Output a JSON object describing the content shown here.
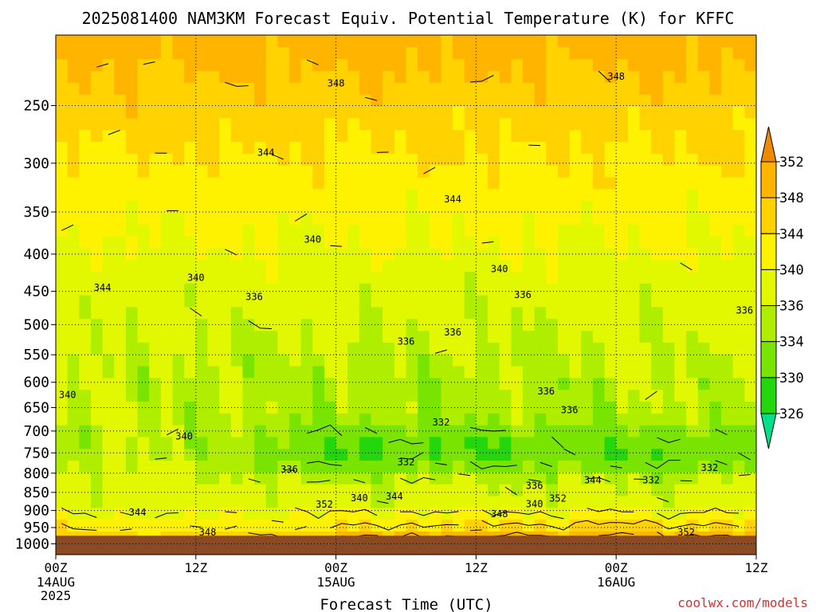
{
  "chart_data": {
    "type": "heatmap",
    "title": "2025081400 NAM3KM Forecast Equiv. Potential Temperature (K) for KFFC",
    "xlabel": "Forecast Time (UTC)",
    "ylabel": "",
    "credit": "coolwx.com/models",
    "x_range_hours": [
      0,
      60
    ],
    "x_ticks": [
      {
        "hour": 0,
        "label": "00Z",
        "date": "14AUG",
        "year": "2025"
      },
      {
        "hour": 12,
        "label": "12Z",
        "date": "",
        "year": ""
      },
      {
        "hour": 24,
        "label": "00Z",
        "date": "15AUG",
        "year": ""
      },
      {
        "hour": 36,
        "label": "12Z",
        "date": "",
        "year": ""
      },
      {
        "hour": 48,
        "label": "00Z",
        "date": "16AUG",
        "year": ""
      },
      {
        "hour": 60,
        "label": "12Z",
        "date": "",
        "year": ""
      }
    ],
    "y_axis": "pressure (hPa), decreasing upward, log scale",
    "y_range_hpa": [
      1035,
      200
    ],
    "y_ticks": [
      250,
      300,
      350,
      400,
      450,
      500,
      550,
      600,
      650,
      700,
      750,
      800,
      850,
      900,
      950,
      1000
    ],
    "surface_hpa": 975,
    "surface_color": "#8b4a22",
    "grid": true,
    "colorbar": {
      "levels": [
        326,
        330,
        334,
        336,
        340,
        344,
        348,
        352
      ],
      "labels": [
        "352",
        "348",
        "344",
        "340",
        "336",
        "334",
        "330",
        "326"
      ],
      "colors": [
        "#00e08a",
        "#22d80c",
        "#78e400",
        "#b0ee00",
        "#e2f800",
        "#fff200",
        "#ffd200",
        "#ffb400",
        "#ee8a00"
      ]
    },
    "contour_labels": [
      {
        "text": "348",
        "hour": 24,
        "hpa": 233
      },
      {
        "text": "348",
        "hour": 48,
        "hpa": 228
      },
      {
        "text": "344",
        "hour": 18,
        "hpa": 290
      },
      {
        "text": "344",
        "hour": 34,
        "hpa": 336
      },
      {
        "text": "340",
        "hour": 22,
        "hpa": 382
      },
      {
        "text": "344",
        "hour": 4,
        "hpa": 445
      },
      {
        "text": "340",
        "hour": 12,
        "hpa": 431
      },
      {
        "text": "336",
        "hour": 17,
        "hpa": 458
      },
      {
        "text": "340",
        "hour": 38,
        "hpa": 419
      },
      {
        "text": "336",
        "hour": 40,
        "hpa": 455
      },
      {
        "text": "336",
        "hour": 59,
        "hpa": 478
      },
      {
        "text": "336",
        "hour": 30,
        "hpa": 527
      },
      {
        "text": "336",
        "hour": 34,
        "hpa": 512
      },
      {
        "text": "340",
        "hour": 1,
        "hpa": 624
      },
      {
        "text": "336",
        "hour": 42,
        "hpa": 617
      },
      {
        "text": "336",
        "hour": 44,
        "hpa": 655
      },
      {
        "text": "340",
        "hour": 11,
        "hpa": 712
      },
      {
        "text": "332",
        "hour": 33,
        "hpa": 681
      },
      {
        "text": "332",
        "hour": 30,
        "hpa": 773
      },
      {
        "text": "336",
        "hour": 20,
        "hpa": 790
      },
      {
        "text": "344",
        "hour": 46,
        "hpa": 818
      },
      {
        "text": "332",
        "hour": 51,
        "hpa": 818
      },
      {
        "text": "332",
        "hour": 56,
        "hpa": 786
      },
      {
        "text": "336",
        "hour": 41,
        "hpa": 832
      },
      {
        "text": "340",
        "hour": 26,
        "hpa": 865
      },
      {
        "text": "344",
        "hour": 29,
        "hpa": 861
      },
      {
        "text": "352",
        "hour": 23,
        "hpa": 883
      },
      {
        "text": "352",
        "hour": 43,
        "hpa": 866
      },
      {
        "text": "340",
        "hour": 41,
        "hpa": 882
      },
      {
        "text": "348",
        "hour": 38,
        "hpa": 910
      },
      {
        "text": "344",
        "hour": 7,
        "hpa": 905
      },
      {
        "text": "348",
        "hour": 13,
        "hpa": 965
      },
      {
        "text": "352",
        "hour": 54,
        "hpa": 965
      }
    ]
  }
}
